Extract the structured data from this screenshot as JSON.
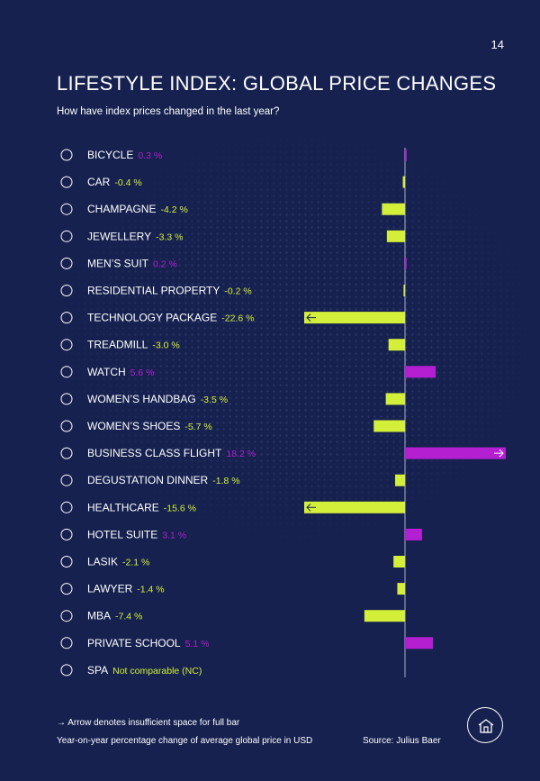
{
  "page_number": "14",
  "title": "LIFESTYLE INDEX: GLOBAL PRICE CHANGES",
  "subtitle": "How have index prices changed in the last year?",
  "colors": {
    "positive": "#b31fd1",
    "negative": "#d4ef3a",
    "text": "#ffffff",
    "background": "#16214f"
  },
  "chart_data": {
    "type": "bar",
    "orientation": "horizontal",
    "categories": [
      "BICYCLE",
      "CAR",
      "CHAMPAGNE",
      "JEWELLERY",
      "MEN’S SUIT",
      "RESIDENTIAL PROPERTY",
      "TECHNOLOGY PACKAGE",
      "TREADMILL",
      "WATCH",
      "WOMEN’S HANDBAG",
      "WOMEN’S SHOES",
      "BUSINESS CLASS FLIGHT",
      "DEGUSTATION DINNER",
      "HEALTHCARE",
      "HOTEL SUITE",
      "LASIK",
      "LAWYER",
      "MBA",
      "PRIVATE SCHOOL",
      "SPA"
    ],
    "values": [
      0.3,
      -0.4,
      -4.2,
      -3.3,
      0.2,
      -0.2,
      -22.6,
      -3.0,
      5.6,
      -3.5,
      -5.7,
      18.2,
      -1.8,
      -15.6,
      3.1,
      -2.1,
      -1.4,
      -7.4,
      5.1,
      null
    ],
    "value_labels": [
      "0.3 %",
      "-0.4 %",
      "-4.2 %",
      "-3.3 %",
      "0.2 %",
      "-0.2 %",
      "-22.6 %",
      "-3.0 %",
      "5.6 %",
      "-3.5 %",
      "-5.7 %",
      "18.2 %",
      "-1.8 %",
      "-15.6 %",
      "3.1 %",
      "-2.1 %",
      "-1.4 %",
      "-7.4 %",
      "5.1 %",
      "Not comparable (NC)"
    ],
    "truncated": [
      false,
      false,
      false,
      false,
      false,
      false,
      true,
      false,
      false,
      false,
      false,
      true,
      false,
      true,
      false,
      false,
      false,
      false,
      false,
      false
    ],
    "icons": [
      "bicycle-icon",
      "car-icon",
      "champagne-icon",
      "jewellery-icon",
      "mens-suit-icon",
      "residential-property-icon",
      "technology-package-icon",
      "treadmill-icon",
      "watch-icon",
      "womens-handbag-icon",
      "womens-shoes-icon",
      "business-class-flight-icon",
      "degustation-dinner-icon",
      "healthcare-icon",
      "hotel-suite-icon",
      "lasik-icon",
      "lawyer-icon",
      "mba-icon",
      "private-school-icon",
      "spa-icon"
    ],
    "xlim": [
      -18,
      18
    ],
    "grid": false
  },
  "notes": {
    "arrow_note": "→ Arrow denotes insufficient space for full bar",
    "definition": "Year-on-year percentage change of average global price in USD",
    "source": "Source: Julius Baer"
  },
  "footer_icon": "house-icon"
}
